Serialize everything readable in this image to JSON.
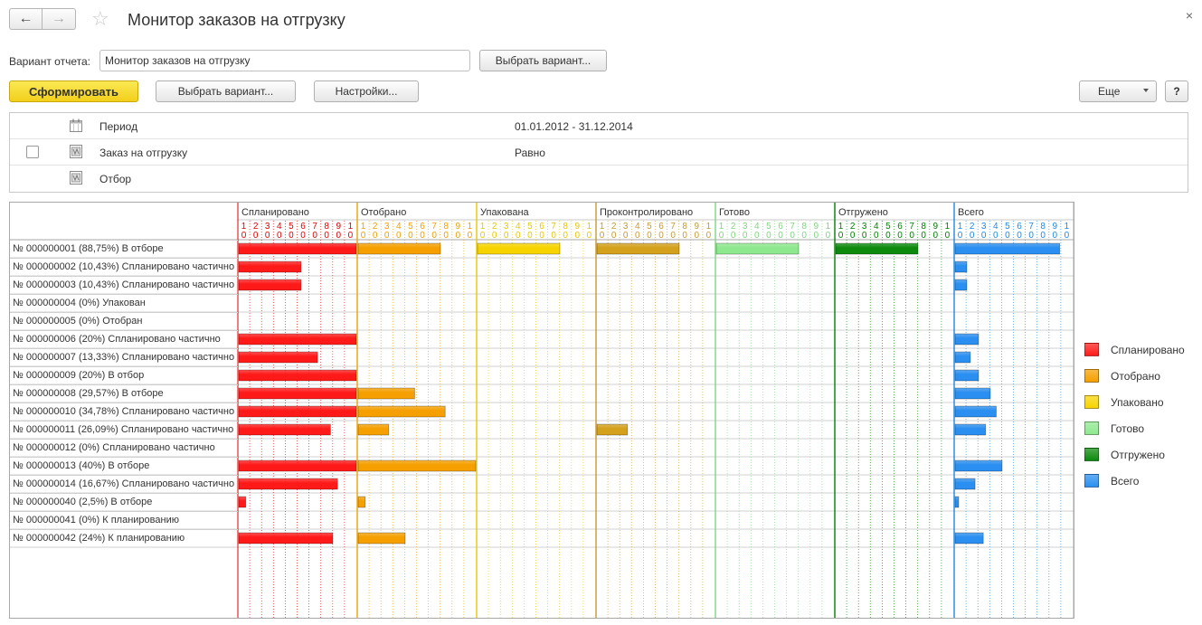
{
  "window": {
    "title": "Монитор заказов на отгрузку"
  },
  "nav": {
    "back_icon": "←",
    "forward_icon": "→",
    "star_icon": "☆",
    "close_icon": "×"
  },
  "variant": {
    "label": "Вариант отчета:",
    "value": "Монитор заказов на отгрузку",
    "choose_label": "Выбрать вариант..."
  },
  "toolbar": {
    "generate_label": "Сформировать",
    "choose_variant_label": "Выбрать вариант...",
    "settings_label": "Настройки...",
    "more_label": "Еще",
    "help_label": "?"
  },
  "settings": {
    "rows": [
      {
        "name": "Период",
        "value": "01.01.2012 - 31.12.2014",
        "has_checkbox": false
      },
      {
        "name": "Заказ на отгрузку",
        "value": "Равно",
        "has_checkbox": true
      },
      {
        "name": "Отбор",
        "value": "",
        "has_checkbox": false
      }
    ]
  },
  "gantt": {
    "groups": [
      {
        "name": "Спланировано",
        "color": "#ff1a1a",
        "line": "#e00000"
      },
      {
        "name": "Отобрано",
        "color": "#f5a000",
        "line": "#f0a000"
      },
      {
        "name": "Упакована",
        "color": "#f7d400",
        "line": "#e8c800"
      },
      {
        "name": "Проконтролировано",
        "color": "#d4a11c",
        "line": "#c89a30"
      },
      {
        "name": "Готово",
        "color": "#8ee88e",
        "line": "#7fd67f"
      },
      {
        "name": "Отгружено",
        "color": "#0d8a0d",
        "line": "#008000"
      },
      {
        "name": "Всего",
        "color": "#2a8ff0",
        "line": "#1e88e5"
      }
    ],
    "scale_top": [
      "1",
      "2",
      "3",
      "4",
      "5",
      "6",
      "7",
      "8",
      "9",
      "1"
    ],
    "scale_bottom": [
      "0",
      "0",
      "0",
      "0",
      "0",
      "0",
      "0",
      "0",
      "0",
      "0"
    ],
    "rows": [
      {
        "label": "№ 000000001 (88,75%) В отборе",
        "values": [
          100,
          70,
          70,
          70,
          70,
          70,
          89
        ]
      },
      {
        "label": "№ 000000002 (10,43%) Спланировано частично",
        "values": [
          53,
          0,
          0,
          0,
          0,
          0,
          10
        ]
      },
      {
        "label": "№ 000000003 (10,43%) Спланировано частично",
        "values": [
          53,
          0,
          0,
          0,
          0,
          0,
          10
        ]
      },
      {
        "label": "№ 000000004 (0%) Упакован",
        "values": [
          0,
          0,
          0,
          0,
          0,
          0,
          0
        ]
      },
      {
        "label": "№ 000000005 (0%) Отобран",
        "values": [
          0,
          0,
          0,
          0,
          0,
          0,
          0
        ]
      },
      {
        "label": "№ 000000006 (20%) Спланировано частично",
        "values": [
          100,
          0,
          0,
          0,
          0,
          0,
          20
        ]
      },
      {
        "label": "№ 000000007 (13,33%) Спланировано частично",
        "values": [
          67,
          0,
          0,
          0,
          0,
          0,
          13
        ]
      },
      {
        "label": "№ 000000009 (20%) В отбор",
        "values": [
          100,
          0,
          0,
          0,
          0,
          0,
          20
        ]
      },
      {
        "label": "№ 000000008 (29,57%) В отборе",
        "values": [
          100,
          48,
          0,
          0,
          0,
          0,
          30
        ]
      },
      {
        "label": "№ 000000010 (34,78%) Спланировано частично",
        "values": [
          100,
          74,
          0,
          0,
          0,
          0,
          35
        ]
      },
      {
        "label": "№ 000000011 (26,09%) Спланировано частично",
        "values": [
          78,
          26,
          0,
          26,
          0,
          0,
          26
        ]
      },
      {
        "label": "№ 000000012 (0%) Спланировано частично",
        "values": [
          0,
          0,
          0,
          0,
          0,
          0,
          0
        ]
      },
      {
        "label": "№ 000000013 (40%) В отборе",
        "values": [
          100,
          100,
          0,
          0,
          0,
          0,
          40
        ]
      },
      {
        "label": "№ 000000014 (16,67%) Спланировано частично",
        "values": [
          84,
          0,
          0,
          0,
          0,
          0,
          17
        ]
      },
      {
        "label": "№ 000000040 (2,5%) В отборе",
        "values": [
          6,
          6,
          0,
          0,
          0,
          0,
          2.5
        ]
      },
      {
        "label": "№ 000000041 (0%) К планированию",
        "values": [
          0,
          0,
          0,
          0,
          0,
          0,
          0
        ]
      },
      {
        "label": "№ 000000042 (24%) К планированию",
        "values": [
          80,
          40,
          0,
          0,
          0,
          0,
          24
        ]
      }
    ]
  },
  "legend": [
    {
      "name": "Спланировано",
      "color": "#ff1a1a"
    },
    {
      "name": "Отобрано",
      "color": "#f5a000"
    },
    {
      "name": "Упаковано",
      "color": "#f7d400"
    },
    {
      "name": "Готово",
      "color": "#8ee88e"
    },
    {
      "name": "Отгружено",
      "color": "#0d8a0d"
    },
    {
      "name": "Всего",
      "color": "#2a8ff0"
    }
  ]
}
